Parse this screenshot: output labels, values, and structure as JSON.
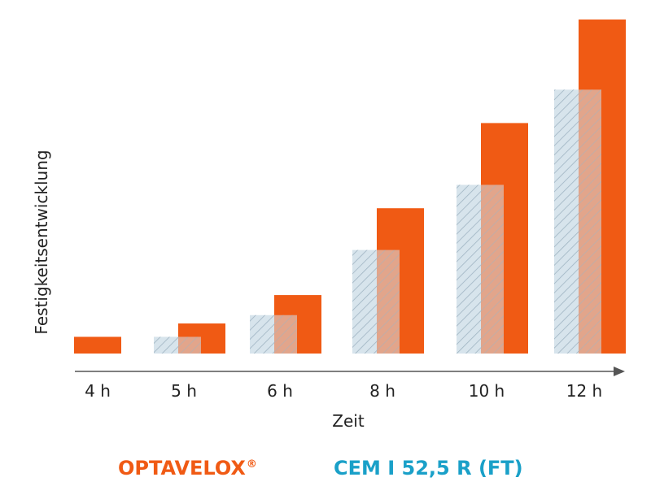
{
  "colors": {
    "optavelox": "#f05a14",
    "cem": "#d7e4ec",
    "cem_hatch": "#9fb4c2",
    "cem_text": "#1aa0c8",
    "axis": "#555555",
    "text": "#222222"
  },
  "legend": {
    "optavelox": "OPTAVELOX",
    "optavelox_mark": "®",
    "cem": "CEM I 52,5 R (FT)"
  },
  "chart_data": {
    "type": "bar",
    "xlabel": "Zeit",
    "ylabel": "Festigkeitsentwicklung",
    "categories": [
      "4 h",
      "5 h",
      "6 h",
      "8 h",
      "10 h",
      "12 h"
    ],
    "ylim": [
      0,
      100
    ],
    "grid": false,
    "series": [
      {
        "name": "OPTAVELOX®",
        "values": [
          5,
          9,
          17.5,
          43.5,
          69,
          100
        ]
      },
      {
        "name": "CEM I 52,5 R (FT)",
        "values": [
          0,
          5,
          11.5,
          31,
          50.5,
          79
        ]
      }
    ]
  }
}
